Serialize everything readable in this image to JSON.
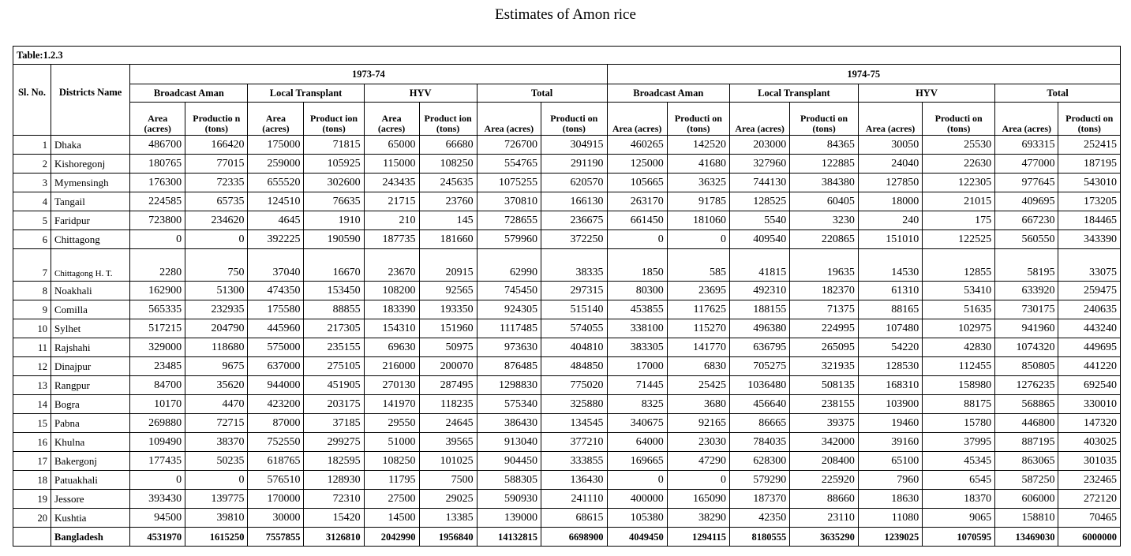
{
  "title": "Estimates of Amon rice",
  "table": {
    "caption": "Table:1.2.3",
    "sl_header": "Sl. No.",
    "district_header": "Districts Name",
    "years": [
      "1973-74",
      "1974-75"
    ],
    "groups_y1": [
      {
        "name": "Broadcast Aman",
        "area": "Area (acres)",
        "prod": "Productio n (tons)"
      },
      {
        "name": "Local Transplant",
        "area": "Area (acres)",
        "prod": "Product ion (tons)"
      },
      {
        "name": "HYV",
        "area": "Area (acres)",
        "prod": "Product ion (tons)"
      },
      {
        "name": "Total",
        "area": "Area (acres)",
        "prod": "Producti on (tons)"
      }
    ],
    "groups_y2": [
      {
        "name": "Broadcast Aman",
        "area": "Area (acres)",
        "prod": "Producti on (tons)"
      },
      {
        "name": "Local Transplant",
        "area": "Area (acres)",
        "prod": "Producti on (tons)"
      },
      {
        "name": "HYV",
        "area": "Area (acres)",
        "prod": "Producti on (tons)"
      },
      {
        "name": "Total",
        "area": "Area (acres)",
        "prod": "Producti on (tons)"
      }
    ],
    "rows": [
      {
        "sl": "1",
        "district": "Dhaka",
        "v": [
          "486700",
          "166420",
          "175000",
          "71815",
          "65000",
          "66680",
          "726700",
          "304915",
          "460265",
          "142520",
          "203000",
          "84365",
          "30050",
          "25530",
          "693315",
          "252415"
        ]
      },
      {
        "sl": "2",
        "district": "Kishoregonj",
        "v": [
          "180765",
          "77015",
          "259000",
          "105925",
          "115000",
          "108250",
          "554765",
          "291190",
          "125000",
          "41680",
          "327960",
          "122885",
          "24040",
          "22630",
          "477000",
          "187195"
        ]
      },
      {
        "sl": "3",
        "district": "Mymensingh",
        "v": [
          "176300",
          "72335",
          "655520",
          "302600",
          "243435",
          "245635",
          "1075255",
          "620570",
          "105665",
          "36325",
          "744130",
          "384380",
          "127850",
          "122305",
          "977645",
          "543010"
        ]
      },
      {
        "sl": "4",
        "district": "Tangail",
        "v": [
          "224585",
          "65735",
          "124510",
          "76635",
          "21715",
          "23760",
          "370810",
          "166130",
          "263170",
          "91785",
          "128525",
          "60405",
          "18000",
          "21015",
          "409695",
          "173205"
        ]
      },
      {
        "sl": "5",
        "district": "Faridpur",
        "v": [
          "723800",
          "234620",
          "4645",
          "1910",
          "210",
          "145",
          "728655",
          "236675",
          "661450",
          "181060",
          "5540",
          "3230",
          "240",
          "175",
          "667230",
          "184465"
        ]
      },
      {
        "sl": "6",
        "district": "Chittagong",
        "v": [
          "0",
          "0",
          "392225",
          "190590",
          "187735",
          "181660",
          "579960",
          "372250",
          "0",
          "0",
          "409540",
          "220865",
          "151010",
          "122525",
          "560550",
          "343390"
        ]
      },
      {
        "sl": "7",
        "district": "Chittagong H. T.",
        "v": [
          "2280",
          "750",
          "37040",
          "16670",
          "23670",
          "20915",
          "62990",
          "38335",
          "1850",
          "585",
          "41815",
          "19635",
          "14530",
          "12855",
          "58195",
          "33075"
        ]
      },
      {
        "sl": "8",
        "district": "Noakhali",
        "v": [
          "162900",
          "51300",
          "474350",
          "153450",
          "108200",
          "92565",
          "745450",
          "297315",
          "80300",
          "23695",
          "492310",
          "182370",
          "61310",
          "53410",
          "633920",
          "259475"
        ]
      },
      {
        "sl": "9",
        "district": "Comilla",
        "v": [
          "565335",
          "232935",
          "175580",
          "88855",
          "183390",
          "193350",
          "924305",
          "515140",
          "453855",
          "117625",
          "188155",
          "71375",
          "88165",
          "51635",
          "730175",
          "240635"
        ]
      },
      {
        "sl": "10",
        "district": "Sylhet",
        "v": [
          "517215",
          "204790",
          "445960",
          "217305",
          "154310",
          "151960",
          "1117485",
          "574055",
          "338100",
          "115270",
          "496380",
          "224995",
          "107480",
          "102975",
          "941960",
          "443240"
        ]
      },
      {
        "sl": "11",
        "district": "Rajshahi",
        "v": [
          "329000",
          "118680",
          "575000",
          "235155",
          "69630",
          "50975",
          "973630",
          "404810",
          "383305",
          "141770",
          "636795",
          "265095",
          "54220",
          "42830",
          "1074320",
          "449695"
        ]
      },
      {
        "sl": "12",
        "district": "Dinajpur",
        "v": [
          "23485",
          "9675",
          "637000",
          "275105",
          "216000",
          "200070",
          "876485",
          "484850",
          "17000",
          "6830",
          "705275",
          "321935",
          "128530",
          "112455",
          "850805",
          "441220"
        ]
      },
      {
        "sl": "13",
        "district": "Rangpur",
        "v": [
          "84700",
          "35620",
          "944000",
          "451905",
          "270130",
          "287495",
          "1298830",
          "775020",
          "71445",
          "25425",
          "1036480",
          "508135",
          "168310",
          "158980",
          "1276235",
          "692540"
        ]
      },
      {
        "sl": "14",
        "district": "Bogra",
        "v": [
          "10170",
          "4470",
          "423200",
          "203175",
          "141970",
          "118235",
          "575340",
          "325880",
          "8325",
          "3680",
          "456640",
          "238155",
          "103900",
          "88175",
          "568865",
          "330010"
        ]
      },
      {
        "sl": "15",
        "district": "Pabna",
        "v": [
          "269880",
          "72715",
          "87000",
          "37185",
          "29550",
          "24645",
          "386430",
          "134545",
          "340675",
          "92165",
          "86665",
          "39375",
          "19460",
          "15780",
          "446800",
          "147320"
        ]
      },
      {
        "sl": "16",
        "district": "Khulna",
        "v": [
          "109490",
          "38370",
          "752550",
          "299275",
          "51000",
          "39565",
          "913040",
          "377210",
          "64000",
          "23030",
          "784035",
          "342000",
          "39160",
          "37995",
          "887195",
          "403025"
        ]
      },
      {
        "sl": "17",
        "district": "Bakergonj",
        "v": [
          "177435",
          "50235",
          "618765",
          "182595",
          "108250",
          "101025",
          "904450",
          "333855",
          "169665",
          "47290",
          "628300",
          "208400",
          "65100",
          "45345",
          "863065",
          "301035"
        ]
      },
      {
        "sl": "18",
        "district": "Patuakhali",
        "v": [
          "0",
          "0",
          "576510",
          "128930",
          "11795",
          "7500",
          "588305",
          "136430",
          "0",
          "0",
          "579290",
          "225920",
          "7960",
          "6545",
          "587250",
          "232465"
        ]
      },
      {
        "sl": "19",
        "district": "Jessore",
        "v": [
          "393430",
          "139775",
          "170000",
          "72310",
          "27500",
          "29025",
          "590930",
          "241110",
          "400000",
          "165090",
          "187370",
          "88660",
          "18630",
          "18370",
          "606000",
          "272120"
        ]
      },
      {
        "sl": "20",
        "district": "Kushtia",
        "v": [
          "94500",
          "39810",
          "30000",
          "15420",
          "14500",
          "13385",
          "139000",
          "68615",
          "105380",
          "38290",
          "42350",
          "23110",
          "11080",
          "9065",
          "158810",
          "70465"
        ]
      }
    ],
    "total": {
      "sl": "",
      "district": "Bangladesh",
      "v": [
        "4531970",
        "1615250",
        "7557855",
        "3126810",
        "2042990",
        "1956840",
        "14132815",
        "6698900",
        "4049450",
        "1294115",
        "8180555",
        "3635290",
        "1239025",
        "1070595",
        "13469030",
        "6000000"
      ]
    }
  }
}
